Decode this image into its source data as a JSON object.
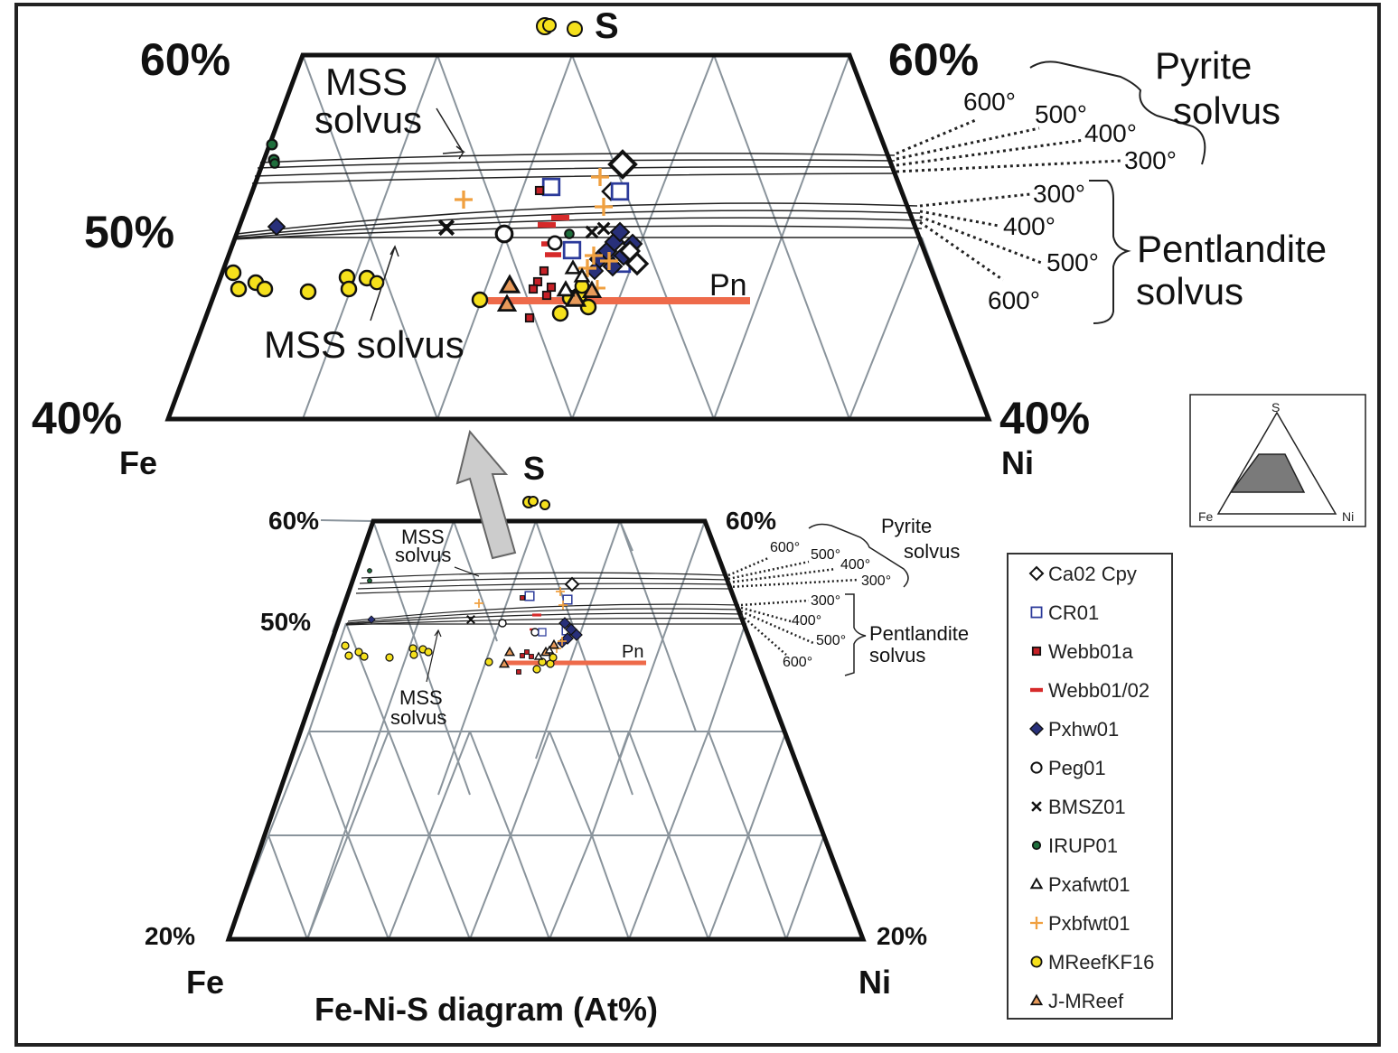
{
  "top": {
    "apex": "S",
    "left_top_pct": "60%",
    "right_top_pct": "60%",
    "left_mid_pct": "50%",
    "left_bottom_pct": "40%",
    "right_bottom_pct": "40%",
    "corner_left": "Fe",
    "corner_right": "Ni",
    "mss_upper_line1": "MSS",
    "mss_upper_line2": "solvus",
    "mss_lower": "MSS solvus",
    "pn": "Pn",
    "pyrite_line1": "Pyrite",
    "pyrite_line2": "solvus",
    "pentlandite_line1": "Pentlandite",
    "pentlandite_line2": "solvus",
    "pyrite_temps": [
      "600°",
      "500°",
      "400°",
      "300°"
    ],
    "pent_temps": [
      "300°",
      "400°",
      "500°",
      "600°"
    ]
  },
  "bottom": {
    "apex": "S",
    "left_top_pct": "60%",
    "right_top_pct": "60%",
    "left_mid_pct": "50%",
    "left_bottom_pct": "20%",
    "right_bottom_pct": "20%",
    "corner_left": "Fe",
    "corner_right": "Ni",
    "mss_upper_line1": "MSS",
    "mss_upper_line2": "solvus",
    "mss_lower_line1": "MSS",
    "mss_lower_line2": "solvus",
    "pn": "Pn",
    "pyrite_line1": "Pyrite",
    "pyrite_line2": "solvus",
    "pentlandite_line1": "Pentlandite",
    "pentlandite_line2": "solvus",
    "pyrite_temps": [
      "600°",
      "500°",
      "400°",
      "300°"
    ],
    "pent_temps": [
      "300°",
      "400°",
      "500°",
      "600°"
    ],
    "caption": "Fe-Ni-S diagram (At%)"
  },
  "inset": {
    "s": "S",
    "fe": "Fe",
    "ni": "Ni"
  },
  "legend": [
    {
      "label": "Ca02 Cpy",
      "marker": "diamond-open",
      "color": "#111111"
    },
    {
      "label": "CR01",
      "marker": "square-open",
      "color": "#2b3a9a"
    },
    {
      "label": "Webb01a",
      "marker": "square-filled",
      "color": "#c62026"
    },
    {
      "label": "Webb01/02",
      "marker": "dash",
      "color": "#d62a2a"
    },
    {
      "label": "Pxhw01",
      "marker": "diamond-filled",
      "color": "#28307a"
    },
    {
      "label": "Peg01",
      "marker": "circle-open",
      "color": "#111111"
    },
    {
      "label": "BMSZ01",
      "marker": "cross",
      "color": "#111111"
    },
    {
      "label": "IRUP01",
      "marker": "circle-filled",
      "color": "#1f6e3c"
    },
    {
      "label": "Pxafwt01",
      "marker": "triangle-open",
      "color": "#111111"
    },
    {
      "label": "Pxbfwt01",
      "marker": "plus",
      "color": "#f0a040"
    },
    {
      "label": "MReefKF16",
      "marker": "circle-yellow",
      "color": "#f5e01c"
    },
    {
      "label": "J-MReef",
      "marker": "triangle-orange",
      "color": "#e89a5a"
    }
  ],
  "colors": {
    "grid": "#8a949c",
    "pn_line": "#ee6a4a",
    "arrow": "#cccccc"
  }
}
